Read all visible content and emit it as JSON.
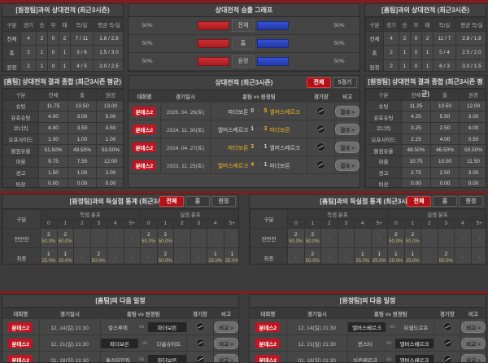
{
  "colors": {
    "accent_red": "#b31117",
    "badge_red": "#c01622",
    "bar_red": "#b52227",
    "bar_blue": "#2b48c8",
    "highlight_yellow": "#e9b122",
    "background": "#3c3c3c"
  },
  "h2h_away": {
    "title": "[원정팀]과의 상대전적 (최근3시즌)",
    "headers": [
      "구분",
      "경기",
      "승",
      "무",
      "패",
      "득/실",
      "평균 득/실"
    ],
    "rows": [
      [
        "전체",
        "4",
        "2",
        "0",
        "2",
        "7 / 11",
        "1.8 / 2.8"
      ],
      [
        "홈",
        "2",
        "1",
        "0",
        "1",
        "3 / 6",
        "1.5 / 3.0"
      ],
      [
        "원정",
        "2",
        "1",
        "0",
        "1",
        "4 / 5",
        "2.0 / 2.5"
      ]
    ]
  },
  "winrate": {
    "title": "상대전적 승률 그래프",
    "rows": [
      {
        "label": "전체",
        "left_pct": "50%",
        "right_pct": "50%"
      },
      {
        "label": "홈",
        "left_pct": "50%",
        "right_pct": "50%"
      },
      {
        "label": "원정",
        "left_pct": "50%",
        "right_pct": "50%"
      }
    ]
  },
  "h2h_home": {
    "title": "[홈팀]과의 상대전적 (최근3시즌)",
    "headers": [
      "구분",
      "경기",
      "승",
      "무",
      "패",
      "득/실",
      "평균 득/실"
    ],
    "rows": [
      [
        "전체",
        "4",
        "2",
        "0",
        "2",
        "11 / 7",
        "2.8 / 1.8"
      ],
      [
        "홈",
        "2",
        "1",
        "0",
        "1",
        "5 / 4",
        "2.5 / 2.0"
      ],
      [
        "원정",
        "2",
        "1",
        "0",
        "1",
        "6 / 3",
        "3.0 / 1.5"
      ]
    ]
  },
  "home_summary": {
    "title": "[홈팀] 상대전적 결과 종합 (최근3시즌 평균)",
    "headers": [
      "구분",
      "전체",
      "홈",
      "원정"
    ],
    "rows": [
      [
        "슈팅",
        "11.75",
        "10.50",
        "13.00"
      ],
      [
        "유효슈팅",
        "4.00",
        "3.00",
        "5.00"
      ],
      [
        "코너킥",
        "4.00",
        "3.50",
        "4.50"
      ],
      [
        "오프사이드",
        "1.00",
        "1.00",
        "1.00"
      ],
      [
        "볼점유율",
        "51.50%",
        "49.50%",
        "53.50%"
      ],
      [
        "파울",
        "9.75",
        "7.50",
        "12.00"
      ],
      [
        "경고",
        "1.50",
        "1.00",
        "2.00"
      ],
      [
        "퇴장",
        "0.00",
        "0.00",
        "0.00"
      ]
    ]
  },
  "recent_matches": {
    "title": "상대전적 (최근3시즌)",
    "filters": [
      {
        "label": "전체",
        "active": true
      },
      {
        "label": "5경기",
        "active": false
      }
    ],
    "headers": [
      "대회명",
      "경기일시",
      "홈팀 vs 원정팀",
      "경기장",
      "비고"
    ],
    "result_label": "결과 >",
    "rows": [
      {
        "league": "분데스2",
        "date": "2025. 04. 26(토)",
        "home": "파더보른",
        "home_score": "0",
        "away_score": "5",
        "away": "엘버스베르크",
        "winner": "away"
      },
      {
        "league": "분데스2",
        "date": "2024. 11. 30(토)",
        "home": "엘버스베르크",
        "home_score": "1",
        "away_score": "3",
        "away": "파더보른",
        "winner": "away"
      },
      {
        "league": "분데스2",
        "date": "2024. 04. 27(토)",
        "home": "파더보른",
        "home_score": "3",
        "away_score": "1",
        "away": "엘버스베르크",
        "winner": "home"
      },
      {
        "league": "분데스2",
        "date": "2023. 11. 25(토)",
        "home": "엘버스베르크",
        "home_score": "4",
        "away_score": "1",
        "away": "파더보른",
        "winner": "home"
      }
    ]
  },
  "away_summary": {
    "title": "[원정팀] 상대전적 결과 종합 (최근3시즌 평균)",
    "headers": [
      "구분",
      "전체",
      "홈",
      "원정"
    ],
    "rows": [
      [
        "슈팅",
        "11.25",
        "10.50",
        "12.00"
      ],
      [
        "유효슈팅",
        "4.25",
        "5.50",
        "3.00"
      ],
      [
        "코너킥",
        "3.25",
        "2.50",
        "4.00"
      ],
      [
        "오프사이드",
        "2.25",
        "4.00",
        "0.50"
      ],
      [
        "볼점유율",
        "48.50%",
        "46.50%",
        "50.50%"
      ],
      [
        "파울",
        "10.75",
        "10.00",
        "11.50"
      ],
      [
        "경고",
        "2.75",
        "2.50",
        "3.00"
      ],
      [
        "퇴장",
        "0.00",
        "0.00",
        "0.00"
      ]
    ]
  },
  "goal_stats_home": {
    "title": "[원정팀]과의 득실점 통계 (최근3시즌)",
    "filters": [
      {
        "label": "전체",
        "active": true
      },
      {
        "label": "홈",
        "active": false
      },
      {
        "label": "원정",
        "active": false
      }
    ],
    "corner_label": "구분",
    "score_group": "득점 분포",
    "concede_group": "실점 분포",
    "cols": [
      "0",
      "1",
      "2",
      "3",
      "4",
      "5+"
    ],
    "rows": [
      {
        "label": "전반전",
        "score": [
          {
            "n": "2",
            "p": "50.0%"
          },
          {
            "n": "2",
            "p": "50.0%"
          },
          null,
          null,
          null,
          null
        ],
        "concede": [
          {
            "n": "2",
            "p": "50.0%"
          },
          {
            "n": "2",
            "p": "50.0%"
          },
          null,
          null,
          null,
          null
        ]
      },
      {
        "label": "최종",
        "score": [
          {
            "n": "1",
            "p": "25.0%"
          },
          {
            "n": "1",
            "p": "25.0%"
          },
          null,
          {
            "n": "2",
            "p": "50.0%"
          },
          null,
          null
        ],
        "concede": [
          null,
          {
            "n": "2",
            "p": "50.0%"
          },
          null,
          null,
          {
            "n": "1",
            "p": "25.0%"
          },
          {
            "n": "1",
            "p": "25.0%"
          }
        ]
      }
    ]
  },
  "goal_stats_away": {
    "title": "[홈팀]과의 득실점 통계 (최근3시즌)",
    "filters": [
      {
        "label": "전체",
        "active": true
      },
      {
        "label": "홈",
        "active": false
      },
      {
        "label": "원정",
        "active": false
      }
    ],
    "corner_label": "구분",
    "score_group": "득점 분포",
    "concede_group": "실점 분포",
    "cols": [
      "0",
      "1",
      "2",
      "3",
      "4",
      "5+"
    ],
    "rows": [
      {
        "label": "전반전",
        "score": [
          {
            "n": "2",
            "p": "50.0%"
          },
          {
            "n": "2",
            "p": "50.0%"
          },
          null,
          null,
          null,
          null
        ],
        "concede": [
          {
            "n": "2",
            "p": "50.0%"
          },
          {
            "n": "2",
            "p": "50.0%"
          },
          null,
          null,
          null,
          null
        ]
      },
      {
        "label": "최종",
        "score": [
          null,
          {
            "n": "2",
            "p": "50.0%"
          },
          null,
          null,
          {
            "n": "1",
            "p": "25.0%"
          },
          {
            "n": "1",
            "p": "25.0%"
          }
        ],
        "concede": [
          {
            "n": "1",
            "p": "25.0%"
          },
          {
            "n": "1",
            "p": "25.0%"
          },
          null,
          {
            "n": "2",
            "p": "50.0%"
          },
          null,
          null
        ]
      }
    ]
  },
  "next_home": {
    "title": "[홈팀]의 다음 일정",
    "headers": [
      "대회명",
      "경기일시",
      "홈팀 vs 원정팀",
      "경기장",
      "비고"
    ],
    "compare_label": "비교 >",
    "vs_label": "vs",
    "rows": [
      {
        "league": "분데스2",
        "datetime": "12. 14(일) 21:30",
        "home": "칼스루에",
        "away": "파더보른",
        "highlight": "away"
      },
      {
        "league": "분데스2",
        "datetime": "12. 21(일) 21:30",
        "home": "파더보른",
        "away": "다름슈타트",
        "highlight": "home"
      },
      {
        "league": "분데스2",
        "datetime": "01. 18(일) 21:30",
        "home": "홀슈타인킬",
        "away": "파더보른",
        "highlight": "away"
      }
    ]
  },
  "next_away": {
    "title": "[원정팀]의 다음 일정",
    "headers": [
      "대회명",
      "경기일시",
      "홈팀 vs 원정팀",
      "경기장",
      "비고"
    ],
    "compare_label": "비교 >",
    "vs_label": "vs",
    "rows": [
      {
        "league": "분데스2",
        "datetime": "12. 14(일) 21:30",
        "home": "엘버스베르크",
        "away": "뒤셀도르프",
        "highlight": "home"
      },
      {
        "league": "분데스2",
        "datetime": "12. 21(일) 21:30",
        "home": "뮌스터",
        "away": "엘버스베르크",
        "highlight": "away"
      },
      {
        "league": "분데스2",
        "datetime": "01. 18(일) 21:30",
        "home": "뉘른베르크",
        "away": "엘버스베르크",
        "highlight": "away"
      }
    ]
  }
}
